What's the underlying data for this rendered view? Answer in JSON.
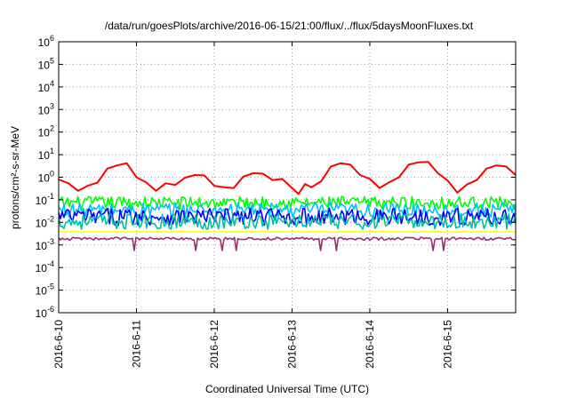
{
  "chart_data": {
    "type": "line",
    "title": "/data/run/goesPlots/archive/2016-06-15/21:00/flux/../flux/5daysMoonFluxes.txt",
    "xlabel": "Coordinated Universal Time (UTC)",
    "ylabel": "protons/cm²-s-sr-MeV",
    "x_scale": "date",
    "y_scale": "log",
    "xlim": [
      "2016-06-10T00:00",
      "2016-06-15T21:00"
    ],
    "ylim": [
      1e-06,
      1000000.0
    ],
    "grid": true,
    "legend": "none",
    "x_ticks": [
      {
        "x": "2016-06-10",
        "label": "2016-6-10"
      },
      {
        "x": "2016-06-11",
        "label": "2016-6-11"
      },
      {
        "x": "2016-06-12",
        "label": "2016-6-12"
      },
      {
        "x": "2016-06-13",
        "label": "2016-6-13"
      },
      {
        "x": "2016-06-14",
        "label": "2016-6-14"
      },
      {
        "x": "2016-06-15",
        "label": "2016-6-15"
      }
    ],
    "y_ticks": [
      {
        "y": 1e-06,
        "base": "10",
        "exp": "-6"
      },
      {
        "y": 1e-05,
        "base": "10",
        "exp": "-5"
      },
      {
        "y": 0.0001,
        "base": "10",
        "exp": "-4"
      },
      {
        "y": 0.001,
        "base": "10",
        "exp": "-3"
      },
      {
        "y": 0.01,
        "base": "10",
        "exp": "-2"
      },
      {
        "y": 0.1,
        "base": "10",
        "exp": "-1"
      },
      {
        "y": 1.0,
        "base": "10",
        "exp": "0"
      },
      {
        "y": 10.0,
        "base": "10",
        "exp": "1"
      },
      {
        "y": 100.0,
        "base": "10",
        "exp": "2"
      },
      {
        "y": 1000.0,
        "base": "10",
        "exp": "3"
      },
      {
        "y": 10000.0,
        "base": "10",
        "exp": "4"
      },
      {
        "y": 100000.0,
        "base": "10",
        "exp": "5"
      },
      {
        "y": 1000000.0,
        "base": "10",
        "exp": "6"
      }
    ],
    "series": [
      {
        "color": "#ff0000",
        "values": [
          [
            "2016-06-10T00:00",
            0.8
          ],
          [
            "2016-06-10T03:00",
            0.45
          ],
          [
            "2016-06-10T06:00",
            0.3
          ],
          [
            "2016-06-10T09:00",
            0.35
          ],
          [
            "2016-06-10T12:00",
            0.7
          ],
          [
            "2016-06-10T15:00",
            2.0
          ],
          [
            "2016-06-10T18:00",
            4.0
          ],
          [
            "2016-06-10T21:00",
            3.5
          ],
          [
            "2016-06-11T00:00",
            1.2
          ],
          [
            "2016-06-11T03:00",
            0.5
          ],
          [
            "2016-06-11T06:00",
            0.3
          ],
          [
            "2016-06-11T09:00",
            0.45
          ],
          [
            "2016-06-11T12:00",
            0.55
          ],
          [
            "2016-06-11T15:00",
            0.8
          ],
          [
            "2016-06-11T18:00",
            1.5
          ],
          [
            "2016-06-11T21:00",
            1.0
          ],
          [
            "2016-06-12T00:00",
            0.5
          ],
          [
            "2016-06-12T03:00",
            0.3
          ],
          [
            "2016-06-12T06:00",
            0.4
          ],
          [
            "2016-06-12T09:00",
            0.9
          ],
          [
            "2016-06-12T12:00",
            1.8
          ],
          [
            "2016-06-12T15:00",
            1.2
          ],
          [
            "2016-06-12T18:00",
            0.9
          ],
          [
            "2016-06-12T21:00",
            0.7
          ],
          [
            "2016-06-13T00:00",
            0.4
          ],
          [
            "2016-06-13T02:00",
            0.15
          ],
          [
            "2016-06-13T04:00",
            0.6
          ],
          [
            "2016-06-13T06:00",
            0.3
          ],
          [
            "2016-06-13T09:00",
            0.8
          ],
          [
            "2016-06-13T12:00",
            2.5
          ],
          [
            "2016-06-13T15:00",
            5.0
          ],
          [
            "2016-06-13T18:00",
            3.0
          ],
          [
            "2016-06-13T21:00",
            1.5
          ],
          [
            "2016-06-14T00:00",
            0.7
          ],
          [
            "2016-06-14T03:00",
            0.4
          ],
          [
            "2016-06-14T06:00",
            0.5
          ],
          [
            "2016-06-14T09:00",
            1.2
          ],
          [
            "2016-06-14T12:00",
            3.0
          ],
          [
            "2016-06-14T15:00",
            5.5
          ],
          [
            "2016-06-14T18:00",
            4.0
          ],
          [
            "2016-06-14T21:00",
            1.8
          ],
          [
            "2016-06-15T00:00",
            0.6
          ],
          [
            "2016-06-15T03:00",
            0.25
          ],
          [
            "2016-06-15T06:00",
            0.4
          ],
          [
            "2016-06-15T09:00",
            0.9
          ],
          [
            "2016-06-15T12:00",
            2.0
          ],
          [
            "2016-06-15T15:00",
            4.0
          ],
          [
            "2016-06-15T18:00",
            2.5
          ],
          [
            "2016-06-15T21:00",
            1.5
          ]
        ]
      },
      {
        "color": "#00ff00",
        "base": 0.075,
        "spread": 0.28
      },
      {
        "color": "#00c0ff",
        "base": 0.035,
        "spread": 0.32
      },
      {
        "color": "#0000ff",
        "base": 0.018,
        "spread": 0.38
      },
      {
        "color": "#00bfa0",
        "base": 0.011,
        "spread": 0.35
      },
      {
        "color": "#ffff00",
        "base": 0.0038,
        "spread": 0.02
      },
      {
        "color": "#9b2c6e",
        "base": 0.0019,
        "spread": 0.06
      }
    ]
  }
}
